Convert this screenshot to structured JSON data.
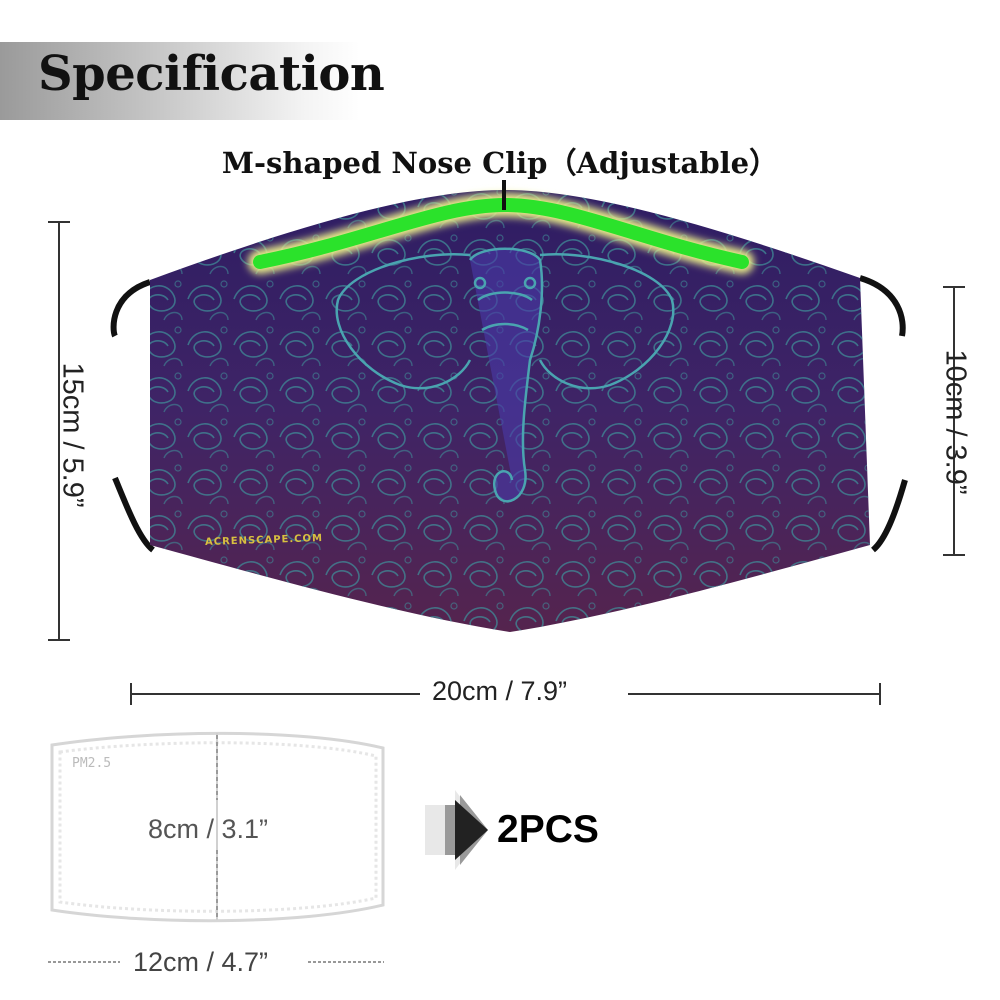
{
  "header": {
    "title": "Specification"
  },
  "nose_clip": {
    "label": "M-shaped Nose Clip（Adjustable）"
  },
  "dimensions": {
    "height": "15cm / 5.9”",
    "side_height": "10cm / 3.9”",
    "width": "20cm / 7.9”"
  },
  "filter": {
    "label": "PM2.5",
    "height": "8cm / 3.1”",
    "width": "12cm / 4.7”",
    "quantity": "2PCS"
  },
  "mask": {
    "watermark": "ACRENSCAPE.COM"
  },
  "colors": {
    "mask_base": "#4a2a6a",
    "mask_pattern": "#3e8f9a",
    "nose_clip": "#22dd22"
  },
  "icons": {
    "arrow": "arrow-right-icon"
  }
}
